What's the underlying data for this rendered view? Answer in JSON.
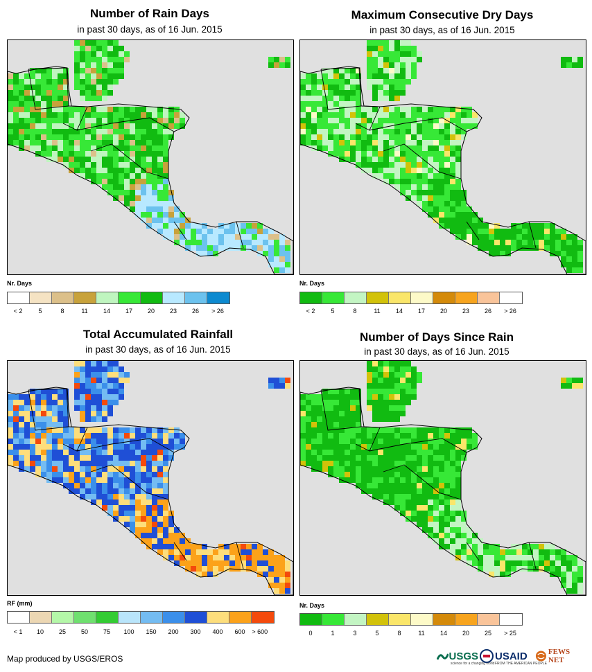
{
  "panels": [
    {
      "title": "Number of Rain Days",
      "subtitle": "in past 30 days, as of 16 Jun. 2015",
      "legend_title": "Nr. Days",
      "legend_colors": [
        "#ffffff",
        "#f5e3c3",
        "#dcc08a",
        "#c8a23b",
        "#bff5bf",
        "#37e837",
        "#11bb11",
        "#b8e9ff",
        "#6cc2ee",
        "#0d8ad0"
      ],
      "legend_labels": [
        "< 2",
        "5",
        "8",
        "11",
        "14",
        "17",
        "20",
        "23",
        "26",
        "> 26"
      ]
    },
    {
      "title": "Maximum Consecutive Dry Days",
      "subtitle": "in past 30 days, as of 16 Jun. 2015",
      "legend_title": "Nr. Days",
      "legend_colors": [
        "#11bb11",
        "#37e837",
        "#c3f5c3",
        "#d2c20a",
        "#fae66a",
        "#fdfac8",
        "#d48a0a",
        "#f7a41e",
        "#f9c49a",
        "#ffffff"
      ],
      "legend_labels": [
        "< 2",
        "5",
        "8",
        "11",
        "14",
        "17",
        "20",
        "23",
        "26",
        "> 26"
      ]
    },
    {
      "title": "Total Accumulated Rainfall",
      "subtitle": "in past 30 days, as of 16 Jun. 2015",
      "legend_title": "RF (mm)",
      "legend_colors": [
        "#ffffff",
        "#ecd7b3",
        "#b4f7a8",
        "#6fe06f",
        "#33cc33",
        "#b9e5fb",
        "#74bcf2",
        "#3b8fea",
        "#1f4fd6",
        "#fdde7c",
        "#fca21a",
        "#f44a0c"
      ],
      "legend_labels": [
        "< 1",
        "10",
        "25",
        "50",
        "75",
        "100",
        "150",
        "200",
        "300",
        "400",
        "600",
        "> 600"
      ]
    },
    {
      "title": "Number of Days Since Rain",
      "subtitle": "in past 30 days, as of 16 Jun. 2015",
      "legend_title": "Nr. Days",
      "legend_colors": [
        "#11bb11",
        "#37e837",
        "#c3f5c3",
        "#d2c20a",
        "#fae66a",
        "#fdfac8",
        "#d48a0a",
        "#f7a41e",
        "#f9c49a",
        "#ffffff"
      ],
      "legend_labels": [
        "0",
        "1",
        "3",
        "5",
        "8",
        "11",
        "14",
        "20",
        "25",
        "> 25"
      ]
    }
  ],
  "credit": "Map produced by USGS/EROS",
  "logos": {
    "usgs": "USGS",
    "usgs_tag": "science for a changing world",
    "usaid": "USAID",
    "usaid_tag": "FROM THE AMERICAN PEOPLE",
    "fews": "FEWS NET"
  },
  "colors": {
    "ocean": "#e0e0e0",
    "border": "#000000"
  }
}
